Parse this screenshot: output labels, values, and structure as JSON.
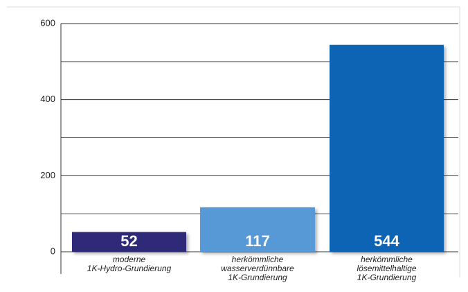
{
  "chart_data": {
    "type": "bar",
    "categories": [
      [
        "moderne",
        "1K-Hydro-Grundierung"
      ],
      [
        "herkömmliche",
        "wasserverdünnbare",
        "1K-Grundierung"
      ],
      [
        "herkömmliche",
        "lösemittelhaltige",
        "1K-Grundierung"
      ]
    ],
    "values": [
      52,
      117,
      544
    ],
    "colors": [
      "#2d2a78",
      "#5799d6",
      "#0764b4"
    ],
    "ylim": [
      0,
      600
    ],
    "yticks": [
      0,
      200,
      400,
      600
    ],
    "minor_yticks": [
      100,
      300,
      500
    ],
    "grid": true
  }
}
